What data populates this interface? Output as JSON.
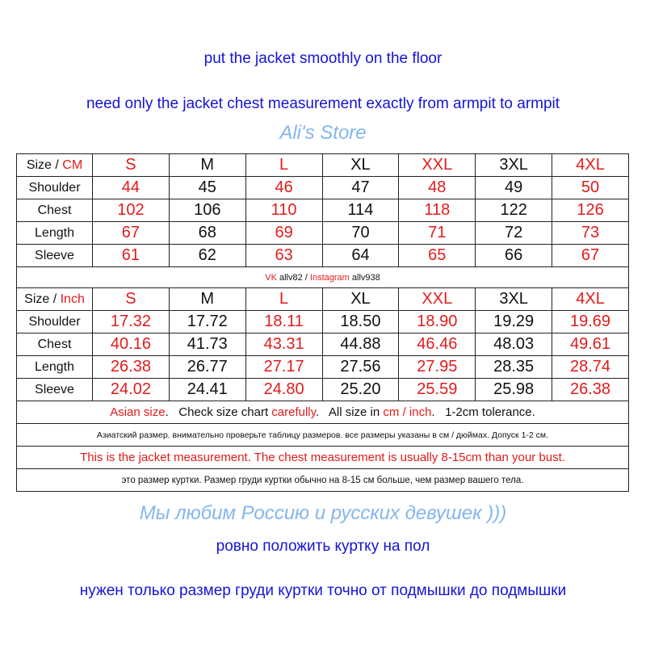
{
  "header": {
    "line1": "put the jacket smoothly on the floor",
    "line2": "need only the jacket chest measurement exactly from armpit to armpit"
  },
  "colors": {
    "text_blue": "#1414d8",
    "accent_red": "#e21b1b",
    "watermark": "#5a9ee8"
  },
  "sizes": [
    "S",
    "M",
    "L",
    "XL",
    "XXL",
    "3XL",
    "4XL"
  ],
  "cm": {
    "label": "Size",
    "unit": "CM",
    "rows": [
      {
        "name": "Shoulder",
        "values": [
          "44",
          "45",
          "46",
          "47",
          "48",
          "49",
          "50"
        ]
      },
      {
        "name": "Chest",
        "values": [
          "102",
          "106",
          "110",
          "114",
          "118",
          "122",
          "126"
        ]
      },
      {
        "name": "Length",
        "values": [
          "67",
          "68",
          "69",
          "70",
          "71",
          "72",
          "73"
        ]
      },
      {
        "name": "Sleeve",
        "values": [
          "61",
          "62",
          "63",
          "64",
          "65",
          "66",
          "67"
        ]
      }
    ]
  },
  "social": {
    "vk_label": "VK",
    "vk": "allv82",
    "sep": "/",
    "ig_label": "Instagram",
    "ig": "allv938"
  },
  "inch": {
    "label": "Size",
    "unit": "Inch",
    "rows": [
      {
        "name": "Shoulder",
        "values": [
          "17.32",
          "17.72",
          "18.11",
          "18.50",
          "18.90",
          "19.29",
          "19.69"
        ]
      },
      {
        "name": "Chest",
        "values": [
          "40.16",
          "41.73",
          "43.31",
          "44.88",
          "46.46",
          "48.03",
          "49.61"
        ]
      },
      {
        "name": "Length",
        "values": [
          "26.38",
          "26.77",
          "27.17",
          "27.56",
          "27.95",
          "28.35",
          "28.74"
        ]
      },
      {
        "name": "Sleeve",
        "values": [
          "24.02",
          "24.41",
          "24.80",
          "25.20",
          "25.59",
          "25.98",
          "26.38"
        ]
      }
    ]
  },
  "notes": {
    "n1": {
      "a": "Asian size",
      "b": ".   Check size chart ",
      "c": "carefully",
      "d": ".   All size in ",
      "e": "cm / inch",
      ".f": "",
      "f": ".   1-2cm tolerance."
    },
    "n2": "Азиатский размер. внимательно проверьте таблицу размеров. все размеры указаны в см / дюймах. Допуск 1-2 см.",
    "n3": "This is the jacket measurement.  The chest measurement is usually 8-15cm than your bust.",
    "n4": "это размер куртки. Размер груди куртки обычно на 8-15 см больше, чем размер вашего тела."
  },
  "watermark": {
    "store": "Ali's Store",
    "slogan": "Мы любим Россию и русских девушек )))"
  },
  "footer": {
    "line1": "ровно положить куртку на пол",
    "line2": "нужен только размер груди куртки точно от подмышки до подмышки"
  }
}
